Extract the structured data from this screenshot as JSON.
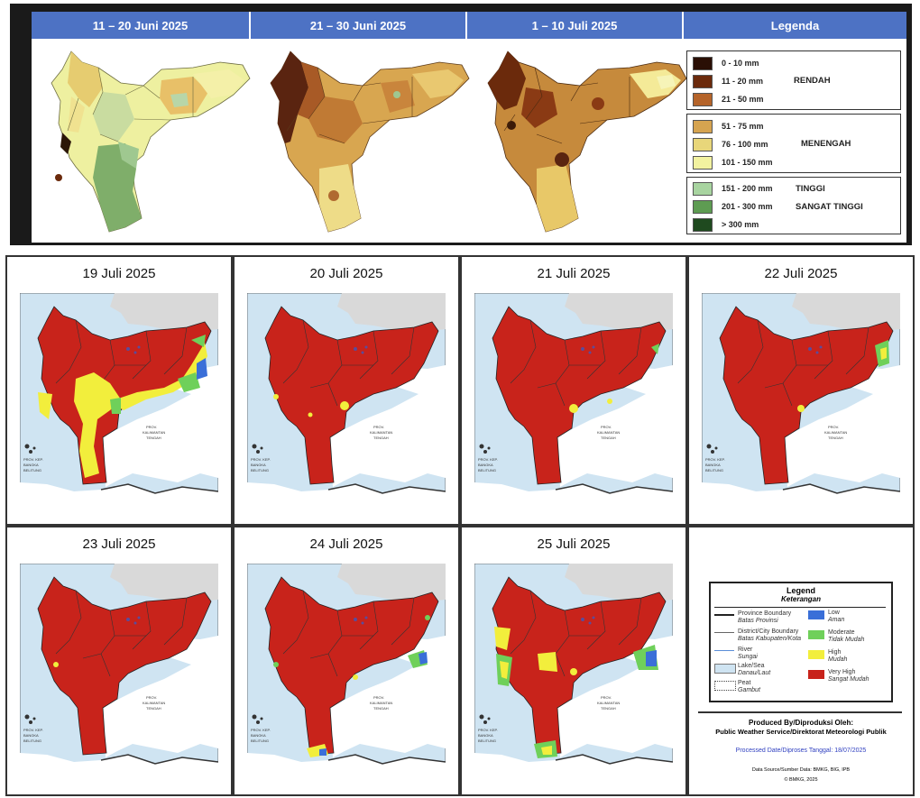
{
  "top": {
    "periods": [
      "11 – 20 Juni 2025",
      "21 – 30 Juni 2025",
      "1 – 10 Juli 2025"
    ],
    "legend_title": "Legenda",
    "legend_classes": [
      {
        "range": "0 - 10 mm",
        "color": "#2a0f05"
      },
      {
        "range": "11 - 20 mm",
        "color": "#6b2a0c"
      },
      {
        "range": "21 - 50 mm",
        "color": "#b5642a"
      },
      {
        "range": "51 - 75 mm",
        "color": "#d6a450"
      },
      {
        "range": "76 - 100 mm",
        "color": "#e8d67a"
      },
      {
        "range": "101 - 150 mm",
        "color": "#f2f2a0"
      },
      {
        "range": "151 - 200 mm",
        "color": "#a8d4a0"
      },
      {
        "range": "201 - 300 mm",
        "color": "#5e9c52"
      },
      {
        "range": "> 300 mm",
        "color": "#1f4a1f"
      }
    ],
    "categories": [
      "RENDAH",
      "MENENGAH",
      "TINGGI",
      "SANGAT TINGGI"
    ]
  },
  "panels": [
    "19 Juli 2025",
    "20 Juli 2025",
    "21 Juli 2025",
    "22 Juli 2025",
    "23 Juli 2025",
    "24 Juli 2025",
    "25 Juli 2025"
  ],
  "legend": {
    "title": "Legend",
    "subtitle": "Keterangan",
    "items": [
      {
        "en": "Province Boundary",
        "id": "Batas Provinsi"
      },
      {
        "en": "District/City Boundary",
        "id": "Batas Kabupaten/Kota"
      },
      {
        "en": "River",
        "id": "Sungai"
      },
      {
        "en": "Lake/Sea",
        "id": "Danau/Laut"
      },
      {
        "en": "Peat",
        "id": "Gambut"
      }
    ],
    "levels": [
      {
        "en": "Low",
        "id": "Aman",
        "color": "#3a6fd8"
      },
      {
        "en": "Moderate",
        "id": "Tidak Mudah",
        "color": "#6fd05a"
      },
      {
        "en": "High",
        "id": "Mudah",
        "color": "#f2ee3c"
      },
      {
        "en": "Very High",
        "id": "Sangat Mudah",
        "color": "#c8231b"
      }
    ],
    "produced_by": "Produced By/Diproduksi Oleh:",
    "producer": "Public Weather Service/Direktorat Meteorologi Publik",
    "processed": "Processed Date/Diproses Tanggal: 18/07/2025",
    "source": "Data Source/Sumber Data: BMKG, BIG, IPB",
    "copyright": "© BMKG, 2025"
  },
  "map_labels": {
    "neighbor": "PROV. KALIMANTAN TENGAH",
    "bangka": "PROV. KEP. BANGKA BELITUNG"
  },
  "colors": {
    "very_high": "#c8231b",
    "high": "#f2ee3c",
    "moderate": "#6fd05a",
    "low": "#3a6fd8",
    "sea": "#cfe4f2",
    "land_other": "#d9d9d9"
  }
}
